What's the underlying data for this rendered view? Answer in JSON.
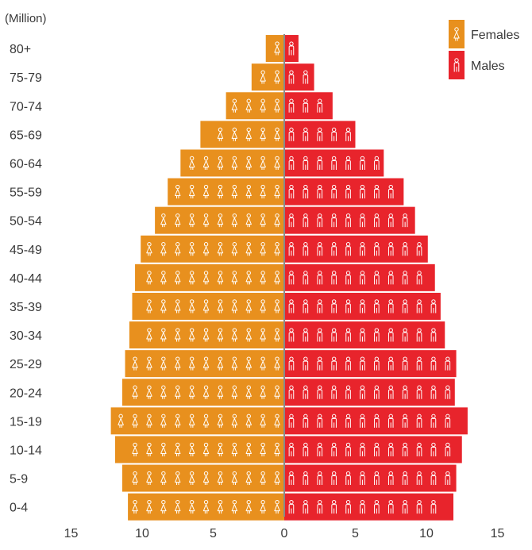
{
  "chart_data": {
    "type": "bar",
    "orientation": "horizontal",
    "subtype": "population-pyramid",
    "unit_label": "(Million)",
    "categories": [
      "80+",
      "75-79",
      "70-74",
      "65-69",
      "60-64",
      "55-59",
      "50-54",
      "45-49",
      "40-44",
      "35-39",
      "30-34",
      "25-29",
      "20-24",
      "15-19",
      "10-14",
      "5-9",
      "0-4"
    ],
    "series": [
      {
        "name": "Females",
        "color": "#E8901E",
        "icon": "female-person-icon",
        "values": [
          1.3,
          2.3,
          4.1,
          5.9,
          7.3,
          8.2,
          9.1,
          10.1,
          10.5,
          10.7,
          10.9,
          11.2,
          11.4,
          12.2,
          11.9,
          11.4,
          11.0
        ]
      },
      {
        "name": "Males",
        "color": "#E8242C",
        "icon": "male-person-icon",
        "values": [
          1.0,
          2.1,
          3.4,
          5.0,
          7.0,
          8.4,
          9.2,
          10.1,
          10.6,
          11.0,
          11.3,
          12.1,
          12.0,
          12.9,
          12.5,
          12.1,
          11.9
        ]
      }
    ],
    "x_ticks": [
      "15",
      "10",
      "5",
      "0",
      "5",
      "10",
      "15"
    ],
    "xlim": [
      -15,
      15
    ],
    "legend": {
      "position": "top-right",
      "items": [
        "Females",
        "Males"
      ]
    },
    "grid": false
  }
}
